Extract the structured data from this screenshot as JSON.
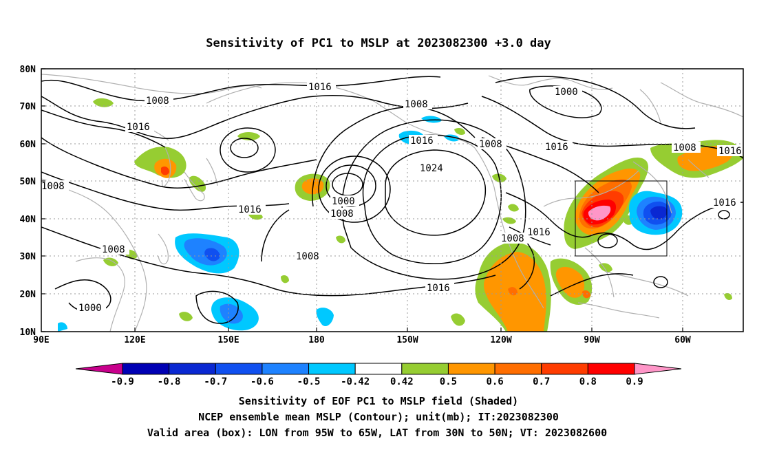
{
  "title": "Sensitivity of PC1 to MSLP at 2023082300 +3.0 day",
  "lat_labels": [
    "80N",
    "70N",
    "60N",
    "50N",
    "40N",
    "30N",
    "20N",
    "10N"
  ],
  "lon_labels": [
    "90E",
    "120E",
    "150E",
    "180",
    "150W",
    "120W",
    "90W",
    "60W"
  ],
  "contour_labels": [
    "1016",
    "1008",
    "1000",
    "1008",
    "1016",
    "1008",
    "1016",
    "1024",
    "1016",
    "1000",
    "1008",
    "1016",
    "1016",
    "1008",
    "1008",
    "1016",
    "1016",
    "1008",
    "1008",
    "1000",
    "1008",
    "1016",
    "1016",
    "1016",
    "1008"
  ],
  "colorbar": {
    "labels": [
      "-0.9",
      "-0.8",
      "-0.7",
      "-0.6",
      "-0.5",
      "-0.42",
      "0.42",
      "0.5",
      "0.6",
      "0.7",
      "0.8",
      "0.9"
    ],
    "colors": [
      "#c8008c",
      "#0000b4",
      "#0a28d2",
      "#1050f0",
      "#1e82ff",
      "#00c8ff",
      "#ffffff",
      "#96cd32",
      "#ff9600",
      "#ff6e00",
      "#ff3c00",
      "#ff0000",
      "#ff96c8"
    ]
  },
  "valid_box": {
    "lon_from": "95W",
    "lon_to": "65W",
    "lat_from": "30N",
    "lat_to": "50N"
  },
  "caption": {
    "line1": "Sensitivity of EOF PC1 to MSLP field (Shaded)",
    "line2": "NCEP ensemble mean MSLP (Contour); unit(mb); IT:2023082300",
    "line3": "Valid area (box): LON from 95W to 65W, LAT from 30N to 50N; VT: 2023082600"
  }
}
